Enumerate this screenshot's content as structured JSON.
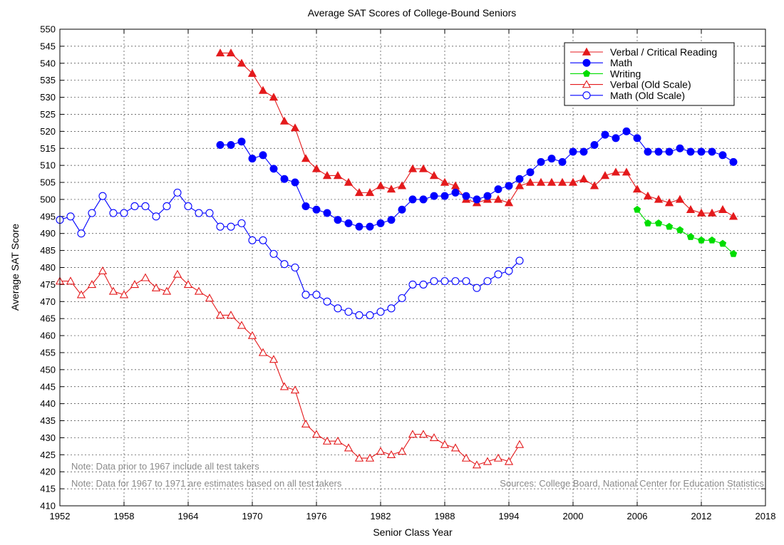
{
  "chart_data": {
    "type": "line",
    "title": "Average SAT Scores of College-Bound Seniors",
    "xlabel": "Senior Class Year",
    "ylabel": "Average SAT Score",
    "xlim": [
      1952,
      2018
    ],
    "ylim": [
      410,
      550
    ],
    "xticks": [
      1952,
      1958,
      1964,
      1970,
      1976,
      1982,
      1988,
      1994,
      2000,
      2006,
      2012,
      2018
    ],
    "yticks": [
      410,
      415,
      420,
      425,
      430,
      435,
      440,
      445,
      450,
      455,
      460,
      465,
      470,
      475,
      480,
      485,
      490,
      495,
      500,
      505,
      510,
      515,
      520,
      525,
      530,
      535,
      540,
      545,
      550
    ],
    "grid": true,
    "legend_position": "top-right",
    "series": [
      {
        "name": "Verbal / Critical Reading",
        "color": "#e41a1c",
        "marker": "triangle-filled",
        "x": [
          1967,
          1968,
          1969,
          1970,
          1971,
          1972,
          1973,
          1974,
          1975,
          1976,
          1977,
          1978,
          1979,
          1980,
          1981,
          1982,
          1983,
          1984,
          1985,
          1986,
          1987,
          1988,
          1989,
          1990,
          1991,
          1992,
          1993,
          1994,
          1995,
          1996,
          1997,
          1998,
          1999,
          2000,
          2001,
          2002,
          2003,
          2004,
          2005,
          2006,
          2007,
          2008,
          2009,
          2010,
          2011,
          2012,
          2013,
          2014,
          2015
        ],
        "y": [
          543,
          543,
          540,
          537,
          532,
          530,
          523,
          521,
          512,
          509,
          507,
          507,
          505,
          502,
          502,
          504,
          503,
          504,
          509,
          509,
          507,
          505,
          504,
          500,
          499,
          500,
          500,
          499,
          504,
          505,
          505,
          505,
          505,
          505,
          506,
          504,
          507,
          508,
          508,
          503,
          501,
          500,
          499,
          500,
          497,
          496,
          496,
          497,
          495
        ]
      },
      {
        "name": "Math",
        "color": "#0000ff",
        "marker": "circle-filled",
        "x": [
          1967,
          1968,
          1969,
          1970,
          1971,
          1972,
          1973,
          1974,
          1975,
          1976,
          1977,
          1978,
          1979,
          1980,
          1981,
          1982,
          1983,
          1984,
          1985,
          1986,
          1987,
          1988,
          1989,
          1990,
          1991,
          1992,
          1993,
          1994,
          1995,
          1996,
          1997,
          1998,
          1999,
          2000,
          2001,
          2002,
          2003,
          2004,
          2005,
          2006,
          2007,
          2008,
          2009,
          2010,
          2011,
          2012,
          2013,
          2014,
          2015
        ],
        "y": [
          516,
          516,
          517,
          512,
          513,
          509,
          506,
          505,
          498,
          497,
          496,
          494,
          493,
          492,
          492,
          493,
          494,
          497,
          500,
          500,
          501,
          501,
          502,
          501,
          500,
          501,
          503,
          504,
          506,
          508,
          511,
          512,
          511,
          514,
          514,
          516,
          519,
          518,
          520,
          518,
          514,
          514,
          514,
          515,
          514,
          514,
          514,
          513,
          511
        ]
      },
      {
        "name": "Writing",
        "color": "#00dd00",
        "marker": "pentagon-filled",
        "x": [
          2006,
          2007,
          2008,
          2009,
          2010,
          2011,
          2012,
          2013,
          2014,
          2015
        ],
        "y": [
          497,
          493,
          493,
          492,
          491,
          489,
          488,
          488,
          487,
          484
        ]
      },
      {
        "name": "Verbal (Old Scale)",
        "color": "#e41a1c",
        "marker": "triangle-open",
        "x": [
          1952,
          1953,
          1954,
          1955,
          1956,
          1957,
          1958,
          1959,
          1960,
          1961,
          1962,
          1963,
          1964,
          1965,
          1966,
          1967,
          1968,
          1969,
          1970,
          1971,
          1972,
          1973,
          1974,
          1975,
          1976,
          1977,
          1978,
          1979,
          1980,
          1981,
          1982,
          1983,
          1984,
          1985,
          1986,
          1987,
          1988,
          1989,
          1990,
          1991,
          1992,
          1993,
          1994,
          1995
        ],
        "y": [
          476,
          476,
          472,
          475,
          479,
          473,
          472,
          475,
          477,
          474,
          473,
          478,
          475,
          473,
          471,
          466,
          466,
          463,
          460,
          455,
          453,
          445,
          444,
          434,
          431,
          429,
          429,
          427,
          424,
          424,
          426,
          425,
          426,
          431,
          431,
          430,
          428,
          427,
          424,
          422,
          423,
          424,
          423,
          428
        ]
      },
      {
        "name": "Math (Old Scale)",
        "color": "#0000ff",
        "marker": "circle-open",
        "x": [
          1952,
          1953,
          1954,
          1955,
          1956,
          1957,
          1958,
          1959,
          1960,
          1961,
          1962,
          1963,
          1964,
          1965,
          1966,
          1967,
          1968,
          1969,
          1970,
          1971,
          1972,
          1973,
          1974,
          1975,
          1976,
          1977,
          1978,
          1979,
          1980,
          1981,
          1982,
          1983,
          1984,
          1985,
          1986,
          1987,
          1988,
          1989,
          1990,
          1991,
          1992,
          1993,
          1994,
          1995
        ],
        "y": [
          494,
          495,
          490,
          496,
          501,
          496,
          496,
          498,
          498,
          495,
          498,
          502,
          498,
          496,
          496,
          492,
          492,
          493,
          488,
          488,
          484,
          481,
          480,
          472,
          472,
          470,
          468,
          467,
          466,
          466,
          467,
          468,
          471,
          475,
          475,
          476,
          476,
          476,
          476,
          474,
          476,
          478,
          479,
          482
        ]
      }
    ],
    "annotations": [
      "Note: Data prior to 1967 include all test takers",
      "Note: Data for 1967 to 1971 are estimates based on all test takers",
      "Sources: College Board, National Center for Education Statistics"
    ]
  }
}
